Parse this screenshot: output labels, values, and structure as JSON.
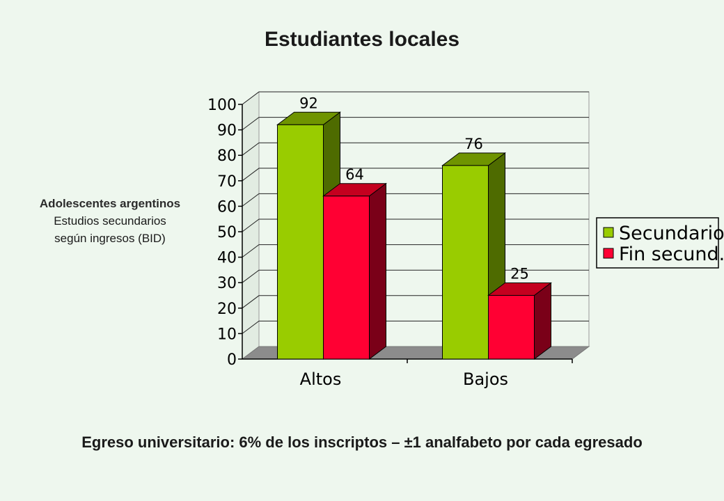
{
  "page": {
    "title": "Estudiantes locales",
    "side_note": {
      "line1": "Adolescentes argentinos",
      "line2": "Estudios secundarios",
      "line3": "según ingresos (BID)"
    },
    "bottom_note": "Egreso universitario: 6% de los inscriptos – ±1 analfabeto por cada egresado"
  },
  "chart_data": {
    "type": "bar",
    "style": "3d-clustered-column",
    "title": "",
    "xlabel": "",
    "ylabel": "",
    "categories": [
      "Altos",
      "Bajos"
    ],
    "series": [
      {
        "name": "Secundario",
        "values": [
          92,
          76
        ],
        "color": "#99cc00",
        "side_color": "#4e6b00",
        "top_color": "#6f9400"
      },
      {
        "name": "Fin secund.",
        "values": [
          64,
          25
        ],
        "color": "#ff0033",
        "side_color": "#7a0018",
        "top_color": "#c4001f"
      }
    ],
    "data_labels": [
      "92",
      "64",
      "76",
      "25"
    ],
    "ylim": [
      0,
      100
    ],
    "yticks": [
      0,
      10,
      20,
      30,
      40,
      50,
      60,
      70,
      80,
      90,
      100
    ],
    "grid": true,
    "legend": "right"
  }
}
